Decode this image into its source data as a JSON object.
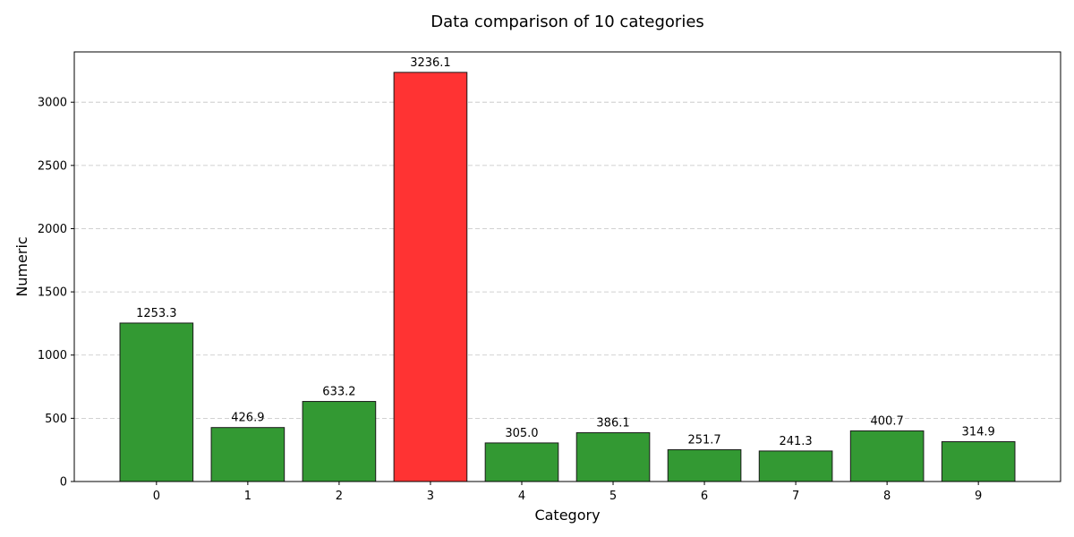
{
  "chart_data": {
    "type": "bar",
    "title": "Data comparison of 10 categories",
    "xlabel": "Category",
    "ylabel": "Numeric",
    "categories": [
      "0",
      "1",
      "2",
      "3",
      "4",
      "5",
      "6",
      "7",
      "8",
      "9"
    ],
    "values": [
      1253.3,
      426.9,
      633.2,
      3236.1,
      305.0,
      386.1,
      251.7,
      241.3,
      400.7,
      314.9
    ],
    "value_labels": [
      "1253.3",
      "426.9",
      "633.2",
      "3236.1",
      "305.0",
      "386.1",
      "251.7",
      "241.3",
      "400.7",
      "314.9"
    ],
    "ylim": [
      0,
      3397.9
    ],
    "yticks": [
      0,
      500,
      1000,
      1500,
      2000,
      2500,
      3000
    ],
    "ytick_labels": [
      "0",
      "500",
      "1000",
      "1500",
      "2000",
      "2500",
      "3000"
    ],
    "grid": {
      "y": true,
      "x": false,
      "style": "dashed"
    },
    "highlight_index": 3,
    "colors": {
      "default": "#339933",
      "highlight": "#ff3333",
      "edge": "#1a1a1a"
    }
  }
}
